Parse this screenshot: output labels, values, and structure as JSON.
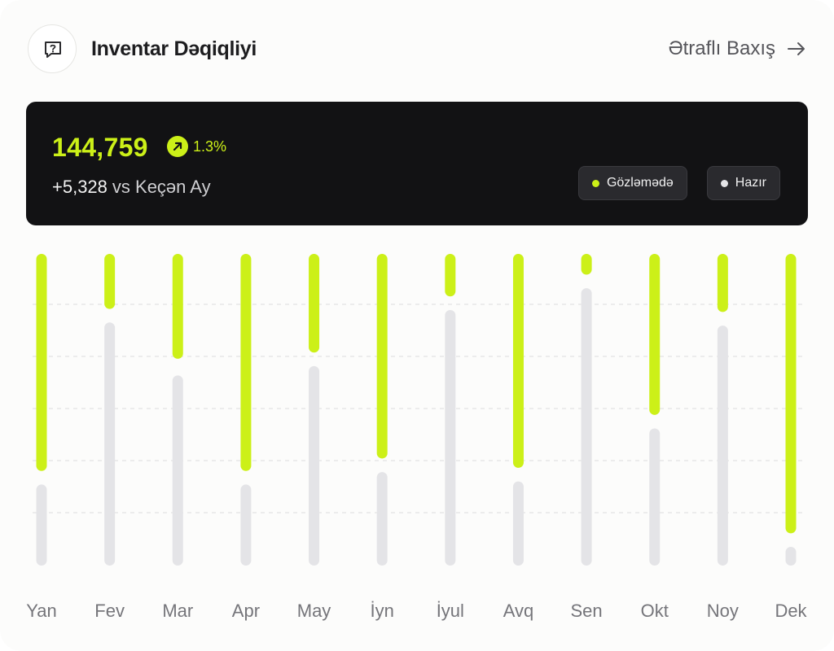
{
  "header": {
    "title": "Inventar Dəqiqliyi",
    "icon": "chat-question-icon",
    "link_label": "Ətraflı Baxış",
    "link_icon": "arrow-right-icon"
  },
  "summary": {
    "value": "144,759",
    "trend_icon": "trend-up-icon",
    "trend_pct": "1.3%",
    "delta_value": "+5,328",
    "delta_label": "vs Keçən Ay",
    "legend": [
      {
        "label": "Gözləmədə",
        "color": "#ccf018"
      },
      {
        "label": "Hazır",
        "color": "#e4e4e7"
      }
    ]
  },
  "colors": {
    "accent": "#ccf018",
    "bar_gray": "#e4e4e7",
    "panel_bg": "#121214"
  },
  "chart_data": {
    "type": "bar",
    "stacked": true,
    "categories": [
      "Yan",
      "Fev",
      "Mar",
      "Apr",
      "May",
      "İyn",
      "İyul",
      "Avq",
      "Sen",
      "Okt",
      "Noy",
      "Dek"
    ],
    "series": [
      {
        "name": "Gözləmədə",
        "values": [
          72,
          20,
          36,
          72,
          34,
          68,
          16,
          71,
          9,
          54,
          21,
          92
        ]
      },
      {
        "name": "Hazır",
        "values": [
          26,
          78,
          61,
          26,
          64,
          30,
          82,
          27,
          89,
          44,
          77,
          6
        ]
      }
    ],
    "ylim": [
      0,
      100
    ],
    "grid": true,
    "legend_position": "top-right"
  }
}
